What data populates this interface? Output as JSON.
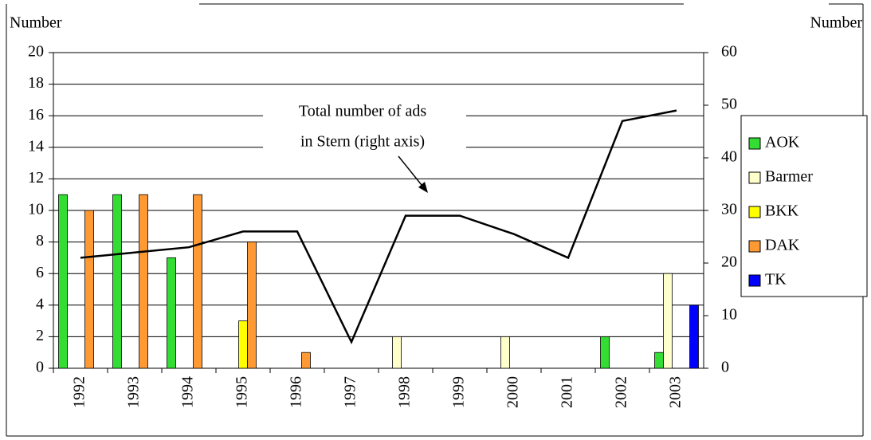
{
  "chart_data": {
    "type": "bar",
    "y_label": "Number",
    "y2_label": "Number",
    "annotation": [
      "Total  number of ads",
      "in Stern (right axis)"
    ],
    "categories": [
      "1992",
      "1993",
      "1994",
      "1995",
      "1996",
      "1997",
      "1998",
      "1999",
      "2000",
      "2001",
      "2002",
      "2003"
    ],
    "series": [
      {
        "name": "AOK",
        "color": "#33dd33",
        "values": [
          11,
          11,
          7,
          0,
          0,
          0,
          0,
          0,
          0,
          0,
          2,
          1
        ]
      },
      {
        "name": "Barmer",
        "color": "#ffffcc",
        "values": [
          0,
          0,
          0,
          0,
          0,
          0,
          2,
          0,
          2,
          0,
          0,
          6
        ]
      },
      {
        "name": "BKK",
        "color": "#ffff00",
        "values": [
          0,
          0,
          0,
          3,
          0,
          0,
          0,
          0,
          0,
          0,
          0,
          0
        ]
      },
      {
        "name": "DAK",
        "color": "#ff9933",
        "values": [
          10,
          11,
          11,
          8,
          1,
          0,
          0,
          0,
          0,
          0,
          0,
          0
        ]
      },
      {
        "name": "TK",
        "color": "#0000ff",
        "values": [
          0,
          0,
          0,
          0,
          0,
          0,
          0,
          0,
          0,
          0,
          0,
          4
        ]
      },
      {
        "type": "line",
        "axis": "y2",
        "color": "#000000",
        "values": [
          21,
          22,
          23,
          26,
          26,
          5,
          29,
          29,
          25.5,
          21,
          47,
          49
        ]
      }
    ],
    "ylim": [
      0,
      20
    ],
    "yticks": [
      0,
      2,
      4,
      6,
      8,
      10,
      12,
      14,
      16,
      18,
      20
    ],
    "y2lim": [
      0,
      60
    ],
    "y2ticks": [
      0,
      10,
      20,
      30,
      40,
      50,
      60
    ],
    "grid": true,
    "legend": "right"
  }
}
